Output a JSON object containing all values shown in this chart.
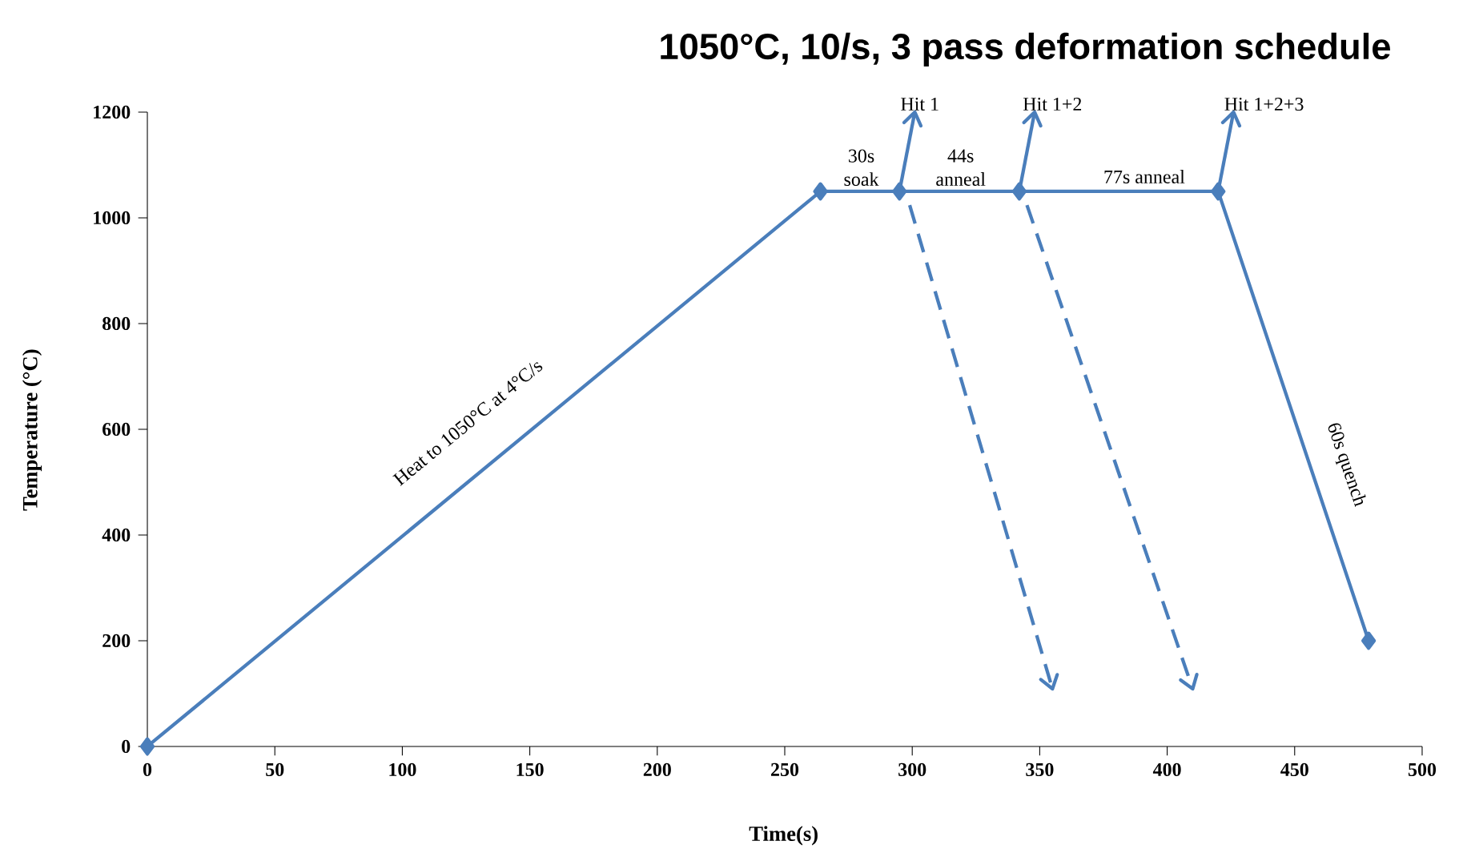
{
  "chart_data": {
    "type": "line",
    "title": "1050°C, 10/s, 3 pass deformation schedule",
    "xlabel": "Time(s)",
    "ylabel": "Temperature (°C)",
    "xlim": [
      0,
      500
    ],
    "xticks": [
      0,
      50,
      100,
      150,
      200,
      250,
      300,
      350,
      400,
      450,
      500
    ],
    "ylim": [
      0,
      1200
    ],
    "yticks": [
      0,
      200,
      400,
      600,
      800,
      1000,
      1200
    ],
    "grid": false,
    "series": [
      {
        "color": "#4a7ebb",
        "marker": "diamond",
        "line_style": "solid",
        "x": [
          0,
          264,
          295,
          342,
          420,
          479
        ],
        "values": [
          0,
          1050,
          1050,
          1050,
          1050,
          200
        ]
      },
      {
        "color": "#4a7ebb",
        "marker": "none",
        "line_style": "solid",
        "x": [
          295,
          301
        ],
        "values": [
          1050,
          1200
        ]
      },
      {
        "color": "#4a7ebb",
        "marker": "none",
        "line_style": "solid",
        "x": [
          342,
          348
        ],
        "values": [
          1050,
          1200
        ]
      },
      {
        "color": "#4a7ebb",
        "marker": "none",
        "line_style": "solid",
        "x": [
          420,
          426
        ],
        "values": [
          1050,
          1200
        ]
      },
      {
        "color": "#4a7ebb",
        "marker": "none",
        "line_style": "dashed",
        "x": [
          299,
          355
        ],
        "values": [
          1024,
          109
        ]
      },
      {
        "color": "#4a7ebb",
        "marker": "none",
        "line_style": "dashed",
        "x": [
          345,
          410
        ],
        "values": [
          1024,
          109
        ]
      }
    ],
    "annotations": [
      "Heat to 1050°C at 4°C/s",
      "30s soak",
      "44s anneal",
      "77s anneal",
      "60s quench",
      "Hit 1",
      "Hit  1+2",
      "Hit 1+2+3"
    ]
  }
}
